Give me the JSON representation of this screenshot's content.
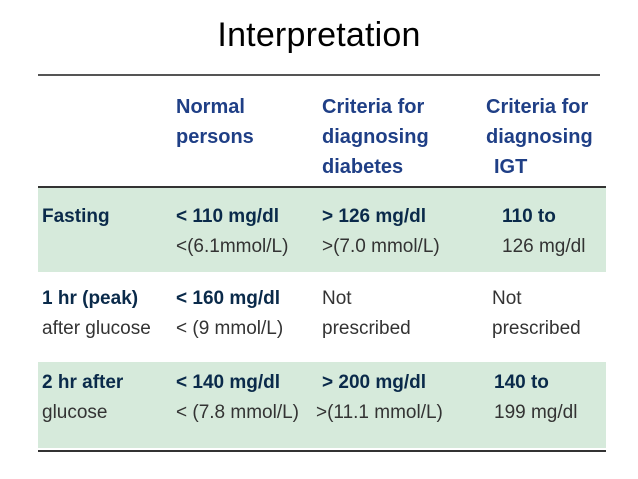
{
  "title": "Interpretation",
  "headers": {
    "normal": [
      "Normal",
      "persons"
    ],
    "diabetes": [
      "Criteria for",
      "diagnosing",
      "diabetes"
    ],
    "igt": [
      "Criteria for",
      "diagnosing",
      "IGT"
    ]
  },
  "rows": [
    {
      "label": [
        "Fasting"
      ],
      "normal": [
        "< 110 mg/dl",
        "<(6.1mmol/L)"
      ],
      "diabetes": [
        "> 126 mg/dl",
        ">(7.0 mmol/L)"
      ],
      "igt": [
        "110 to",
        "126 mg/dl"
      ]
    },
    {
      "label": [
        "1 hr (peak)",
        "after glucose"
      ],
      "normal": [
        "< 160 mg/dl",
        "< (9 mmol/L)"
      ],
      "diabetes": [
        "Not",
        "prescribed"
      ],
      "igt": [
        "Not",
        "prescribed"
      ]
    },
    {
      "label": [
        "2 hr after",
        "glucose"
      ],
      "normal": [
        "< 140 mg/dl",
        "< (7.8 mmol/L)"
      ],
      "diabetes": [
        "> 200 mg/dl",
        ">(11.1 mmol/L)"
      ],
      "igt": [
        "140 to",
        "199 mg/dl"
      ]
    }
  ],
  "colors": {
    "header_text": "#1f3f86",
    "band": "#d6eadb"
  }
}
